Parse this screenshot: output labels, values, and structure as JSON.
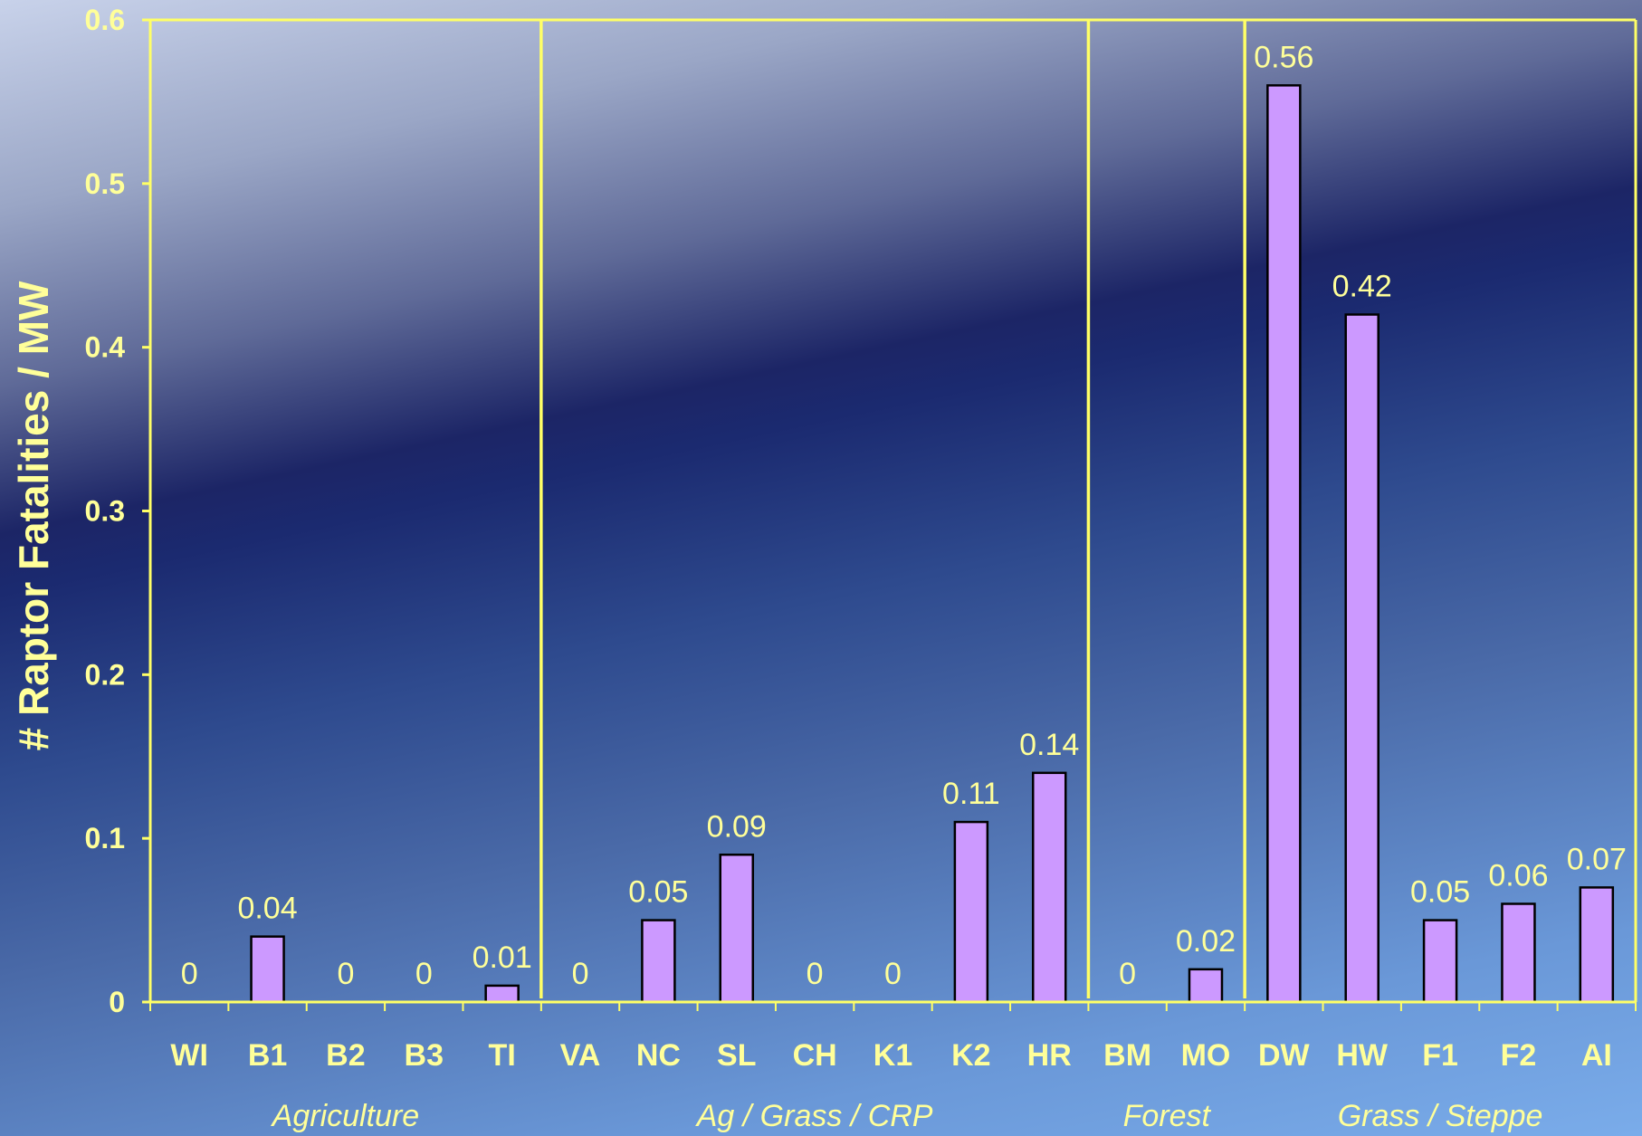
{
  "chart_data": {
    "type": "bar",
    "title": "",
    "ylabel": "# Raptor Fatalities / MW",
    "xlabel": "",
    "ylim": [
      0,
      0.6
    ],
    "yticks": [
      0,
      0.1,
      0.2,
      0.3,
      0.4,
      0.5,
      0.6
    ],
    "ytick_labels": [
      "0",
      "0.1",
      "0.2",
      "0.3",
      "0.4",
      "0.5",
      "0.6"
    ],
    "categories": [
      "WI",
      "B1",
      "B2",
      "B3",
      "TI",
      "VA",
      "NC",
      "SL",
      "CH",
      "K1",
      "K2",
      "HR",
      "BM",
      "MO",
      "DW",
      "HW",
      "F1",
      "F2",
      "AI"
    ],
    "values": [
      0,
      0.04,
      0,
      0,
      0.01,
      0,
      0.05,
      0.09,
      0,
      0,
      0.11,
      0.14,
      0,
      0.02,
      0.56,
      0.42,
      0.05,
      0.06,
      0.07
    ],
    "data_labels": [
      "0",
      "0.04",
      "0",
      "0",
      "0.01",
      "0",
      "0.05",
      "0.09",
      "0",
      "0",
      "0.11",
      "0.14",
      "0",
      "0.02",
      "0.56",
      "0.42",
      "0.05",
      "0.06",
      "0.07"
    ],
    "groups": [
      {
        "name": "Agriculture",
        "start": 0,
        "end": 4
      },
      {
        "name": "Ag / Grass / CRP",
        "start": 5,
        "end": 11
      },
      {
        "name": "Forest",
        "start": 12,
        "end": 13
      },
      {
        "name": "Grass / Steppe",
        "start": 14,
        "end": 18
      }
    ],
    "grid": false,
    "colors": {
      "bar_fill": "#cc99ff",
      "bar_stroke": "#000000",
      "axis": "#ffff66",
      "text": "#ffff99"
    }
  }
}
